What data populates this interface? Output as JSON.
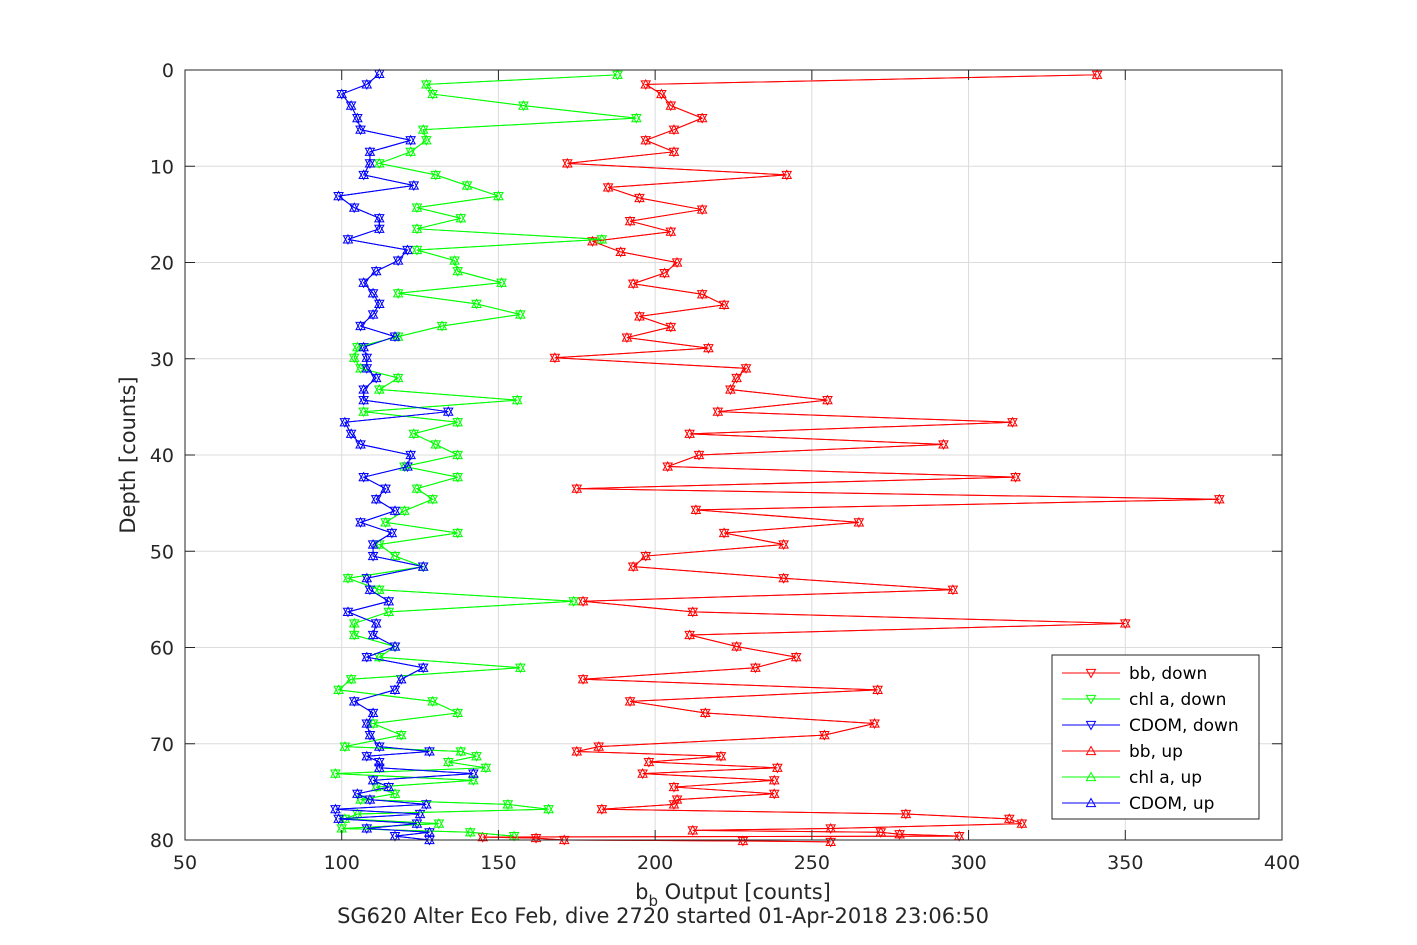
{
  "chart_data": {
    "type": "line",
    "title": "",
    "xlabel_main": "b",
    "xlabel_sub": "b",
    "xlabel_rest": " Output [counts]",
    "ylabel": "Depth [counts]",
    "caption": "SG620 Alter Eco Feb, dive 2720 started 01-Apr-2018 23:06:50",
    "xlim": [
      50,
      400
    ],
    "ylim": [
      0,
      80
    ],
    "y_reversed": true,
    "grid": true,
    "legend_position": "bottom-right",
    "xticks": [
      "50",
      "100",
      "150",
      "200",
      "250",
      "300",
      "350",
      "400"
    ],
    "yticks": [
      "0",
      "10",
      "20",
      "30",
      "40",
      "50",
      "60",
      "70",
      "80"
    ],
    "series": [
      {
        "name": "bb, down",
        "color": "#ff0000",
        "marker": "triangle-down",
        "x": [
          341,
          197,
          202,
          205,
          215,
          206,
          197,
          206,
          172,
          242,
          185,
          195,
          215,
          192,
          205,
          180,
          189,
          207,
          203,
          193,
          215,
          222,
          195,
          205,
          191,
          217,
          168,
          229,
          226,
          224,
          255,
          220,
          314,
          211,
          292,
          214,
          204,
          315,
          175,
          380,
          213,
          265,
          222,
          241,
          197,
          193,
          241,
          295,
          177,
          212,
          350,
          211,
          226,
          245,
          232,
          177,
          271,
          192,
          216,
          270,
          254,
          182,
          175,
          221,
          198,
          239,
          196,
          238,
          206,
          238,
          207,
          206,
          183,
          280,
          313,
          317,
          256,
          212,
          272,
          278,
          297,
          145,
          162,
          171,
          228,
          256
        ],
        "y": [
          0.5,
          1.5,
          2.5,
          3.7,
          5.0,
          6.2,
          7.3,
          8.5,
          9.7,
          10.9,
          12.2,
          13.3,
          14.5,
          15.7,
          16.8,
          17.8,
          18.9,
          20.0,
          21.1,
          22.2,
          23.3,
          24.4,
          25.6,
          26.7,
          27.8,
          28.9,
          29.9,
          31.0,
          32.0,
          33.2,
          34.3,
          35.5,
          36.6,
          37.8,
          38.9,
          40.0,
          41.2,
          42.3,
          43.5,
          44.6,
          45.7,
          47.0,
          48.1,
          49.3,
          50.5,
          51.6,
          52.8,
          54.0,
          55.2,
          56.3,
          57.5,
          58.7,
          59.9,
          61.0,
          62.1,
          63.3,
          64.4,
          65.6,
          66.8,
          67.9,
          69.1,
          70.3,
          70.8,
          71.3,
          71.9,
          72.5,
          73.1,
          73.8,
          74.5,
          75.2,
          75.8,
          76.3,
          76.8,
          77.3,
          77.8,
          78.3,
          78.8,
          79.0,
          79.2,
          79.4,
          79.6,
          79.7,
          79.8,
          80.0,
          80.1,
          80.2
        ]
      },
      {
        "name": "chl a, down",
        "color": "#00ff00",
        "marker": "triangle-down",
        "x": [
          188,
          127,
          129,
          158,
          194,
          126,
          127,
          122,
          112,
          130,
          140,
          150,
          124,
          138,
          124,
          183,
          124,
          136,
          137,
          151,
          118,
          143,
          157,
          132,
          118,
          105,
          104,
          106,
          118,
          112,
          156,
          107,
          137,
          123,
          130,
          137,
          120,
          137,
          124,
          129,
          120,
          114,
          137,
          112,
          117,
          126,
          102,
          112,
          174,
          115,
          104,
          104,
          117,
          112,
          157,
          103,
          99,
          129,
          137,
          110,
          119,
          101,
          138,
          143,
          134,
          146,
          98,
          142,
          111,
          117,
          106,
          153,
          166,
          105,
          101,
          131,
          100,
          141,
          155
        ],
        "y": [
          0.5,
          1.5,
          2.5,
          3.7,
          5.0,
          6.2,
          7.3,
          8.5,
          9.7,
          10.9,
          12.0,
          13.1,
          14.3,
          15.4,
          16.5,
          17.6,
          18.7,
          19.8,
          20.9,
          22.1,
          23.2,
          24.3,
          25.4,
          26.6,
          27.7,
          28.8,
          29.9,
          31.0,
          32.0,
          33.2,
          34.3,
          35.5,
          36.6,
          37.8,
          38.9,
          40.0,
          41.2,
          42.3,
          43.5,
          44.6,
          45.8,
          47.0,
          48.1,
          49.3,
          50.5,
          51.6,
          52.8,
          54.0,
          55.2,
          56.3,
          57.5,
          58.7,
          59.9,
          61.0,
          62.1,
          63.3,
          64.4,
          65.6,
          66.8,
          67.9,
          69.1,
          70.3,
          70.8,
          71.3,
          71.9,
          72.5,
          73.1,
          73.8,
          74.5,
          75.2,
          75.8,
          76.3,
          76.8,
          77.3,
          77.8,
          78.3,
          78.8,
          79.2,
          79.6
        ]
      },
      {
        "name": "CDOM, down",
        "color": "#0000ff",
        "marker": "triangle-down",
        "x": [
          112,
          108,
          100,
          103,
          105,
          106,
          122,
          109,
          109,
          107,
          123,
          99,
          104,
          112,
          112,
          102,
          121,
          118,
          111,
          107,
          110,
          112,
          110,
          106,
          117,
          107,
          108,
          108,
          111,
          107,
          107,
          134,
          101,
          103,
          106,
          122,
          121,
          107,
          114,
          111,
          117,
          106,
          116,
          110,
          110,
          126,
          108,
          109,
          115,
          102,
          111,
          110,
          117,
          108,
          126,
          119,
          117,
          104,
          110,
          108,
          109,
          112,
          128,
          108,
          112,
          112,
          142,
          110,
          115,
          105,
          109,
          127,
          98,
          125,
          99,
          124,
          108,
          128,
          117,
          128
        ],
        "y": [
          0.4,
          1.5,
          2.5,
          3.7,
          5.0,
          6.2,
          7.3,
          8.5,
          9.7,
          10.9,
          12.0,
          13.1,
          14.3,
          15.4,
          16.5,
          17.6,
          18.7,
          19.8,
          20.9,
          22.1,
          23.2,
          24.3,
          25.4,
          26.6,
          27.7,
          28.8,
          29.9,
          31.0,
          32.0,
          33.2,
          34.3,
          35.5,
          36.6,
          37.8,
          38.9,
          40.0,
          41.2,
          42.3,
          43.5,
          44.6,
          45.8,
          47.0,
          48.1,
          49.3,
          50.5,
          51.6,
          52.8,
          54.0,
          55.2,
          56.3,
          57.5,
          58.7,
          59.9,
          61.0,
          62.1,
          63.3,
          64.4,
          65.6,
          66.8,
          67.9,
          69.1,
          70.3,
          70.8,
          71.3,
          71.9,
          72.5,
          73.1,
          73.8,
          74.5,
          75.2,
          75.8,
          76.3,
          76.8,
          77.3,
          77.8,
          78.3,
          78.8,
          79.2,
          79.6,
          80.0
        ]
      },
      {
        "name": "bb, up",
        "color": "#ff0000",
        "marker": "triangle-up",
        "x": [
          341,
          197,
          202,
          205,
          215,
          206,
          197,
          206,
          172,
          242,
          185,
          195,
          215,
          192,
          205,
          180,
          189,
          207,
          203,
          193,
          215,
          222,
          195,
          205,
          191,
          217,
          168,
          229,
          226,
          224,
          255,
          220,
          314,
          211,
          292,
          214,
          204,
          315,
          175,
          380,
          213,
          265,
          222,
          241,
          197,
          193,
          241,
          295,
          177,
          212,
          350,
          211,
          226,
          245,
          232,
          177,
          271,
          192,
          216,
          270,
          254,
          182,
          175,
          221,
          198,
          239,
          196,
          238,
          206,
          238,
          207,
          206,
          183,
          280,
          313,
          317,
          256,
          212,
          272,
          278,
          297,
          145,
          162,
          171,
          228,
          256
        ],
        "y": [
          0.5,
          1.5,
          2.5,
          3.7,
          5.0,
          6.2,
          7.3,
          8.5,
          9.7,
          10.9,
          12.2,
          13.3,
          14.5,
          15.7,
          16.8,
          17.8,
          18.9,
          20.0,
          21.1,
          22.2,
          23.3,
          24.4,
          25.6,
          26.7,
          27.8,
          28.9,
          29.9,
          31.0,
          32.0,
          33.2,
          34.3,
          35.5,
          36.6,
          37.8,
          38.9,
          40.0,
          41.2,
          42.3,
          43.5,
          44.6,
          45.7,
          47.0,
          48.1,
          49.3,
          50.5,
          51.6,
          52.8,
          54.0,
          55.2,
          56.3,
          57.5,
          58.7,
          59.9,
          61.0,
          62.1,
          63.3,
          64.4,
          65.6,
          66.8,
          67.9,
          69.1,
          70.3,
          70.8,
          71.3,
          71.9,
          72.5,
          73.1,
          73.8,
          74.5,
          75.2,
          75.8,
          76.3,
          76.8,
          77.3,
          77.8,
          78.3,
          78.8,
          79.0,
          79.2,
          79.4,
          79.6,
          79.7,
          79.8,
          80.0,
          80.1,
          80.2
        ]
      },
      {
        "name": "chl a, up",
        "color": "#00ff00",
        "marker": "triangle-up",
        "x": [
          188,
          127,
          129,
          158,
          194,
          126,
          127,
          122,
          112,
          130,
          140,
          150,
          124,
          138,
          124,
          183,
          124,
          136,
          137,
          151,
          118,
          143,
          157,
          132,
          118,
          105,
          104,
          106,
          118,
          112,
          156,
          107,
          137,
          123,
          130,
          137,
          120,
          137,
          124,
          129,
          120,
          114,
          137,
          112,
          117,
          126,
          102,
          112,
          174,
          115,
          104,
          104,
          117,
          112,
          157,
          103,
          99,
          129,
          137,
          110,
          119,
          101,
          138,
          143,
          134,
          146,
          98,
          142,
          111,
          117,
          106,
          153,
          166,
          105,
          101,
          131,
          100,
          141,
          155
        ],
        "y": [
          0.5,
          1.5,
          2.5,
          3.7,
          5.0,
          6.2,
          7.3,
          8.5,
          9.7,
          10.9,
          12.0,
          13.1,
          14.3,
          15.4,
          16.5,
          17.6,
          18.7,
          19.8,
          20.9,
          22.1,
          23.2,
          24.3,
          25.4,
          26.6,
          27.7,
          28.8,
          29.9,
          31.0,
          32.0,
          33.2,
          34.3,
          35.5,
          36.6,
          37.8,
          38.9,
          40.0,
          41.2,
          42.3,
          43.5,
          44.6,
          45.8,
          47.0,
          48.1,
          49.3,
          50.5,
          51.6,
          52.8,
          54.0,
          55.2,
          56.3,
          57.5,
          58.7,
          59.9,
          61.0,
          62.1,
          63.3,
          64.4,
          65.6,
          66.8,
          67.9,
          69.1,
          70.3,
          70.8,
          71.3,
          71.9,
          72.5,
          73.1,
          73.8,
          74.5,
          75.2,
          75.8,
          76.3,
          76.8,
          77.3,
          77.8,
          78.3,
          78.8,
          79.2,
          79.6
        ]
      },
      {
        "name": "CDOM, up",
        "color": "#0000ff",
        "marker": "triangle-up",
        "x": [
          112,
          108,
          100,
          103,
          105,
          106,
          122,
          109,
          109,
          107,
          123,
          99,
          104,
          112,
          112,
          102,
          121,
          118,
          111,
          107,
          110,
          112,
          110,
          106,
          117,
          107,
          108,
          108,
          111,
          107,
          107,
          134,
          101,
          103,
          106,
          122,
          121,
          107,
          114,
          111,
          117,
          106,
          116,
          110,
          110,
          126,
          108,
          109,
          115,
          102,
          111,
          110,
          117,
          108,
          126,
          119,
          117,
          104,
          110,
          108,
          109,
          112,
          128,
          108,
          112,
          112,
          142,
          110,
          115,
          105,
          109,
          127,
          98,
          125,
          99,
          124,
          108,
          128,
          117,
          128
        ],
        "y": [
          0.4,
          1.5,
          2.5,
          3.7,
          5.0,
          6.2,
          7.3,
          8.5,
          9.7,
          10.9,
          12.0,
          13.1,
          14.3,
          15.4,
          16.5,
          17.6,
          18.7,
          19.8,
          20.9,
          22.1,
          23.2,
          24.3,
          25.4,
          26.6,
          27.7,
          28.8,
          29.9,
          31.0,
          32.0,
          33.2,
          34.3,
          35.5,
          36.6,
          37.8,
          38.9,
          40.0,
          41.2,
          42.3,
          43.5,
          44.6,
          45.8,
          47.0,
          48.1,
          49.3,
          50.5,
          51.6,
          52.8,
          54.0,
          55.2,
          56.3,
          57.5,
          58.7,
          59.9,
          61.0,
          62.1,
          63.3,
          64.4,
          65.6,
          66.8,
          67.9,
          69.1,
          70.3,
          70.8,
          71.3,
          71.9,
          72.5,
          73.1,
          73.8,
          74.5,
          75.2,
          75.8,
          76.3,
          76.8,
          77.3,
          77.8,
          78.3,
          78.8,
          79.2,
          79.6,
          80.0
        ]
      }
    ]
  }
}
